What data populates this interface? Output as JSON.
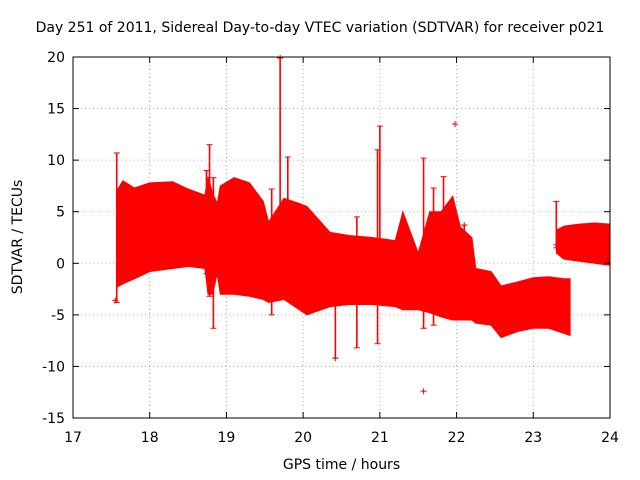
{
  "chart_data": {
    "type": "scatter",
    "title": "Day 251 of 2011, Sidereal Day-to-day VTEC variation (SDTVAR) for receiver p021",
    "xlabel": "GPS time / hours",
    "ylabel": "SDTVAR / TECUs",
    "xlim": [
      17,
      24
    ],
    "ylim": [
      -15,
      20
    ],
    "xticks": [
      17,
      18,
      19,
      20,
      21,
      22,
      23,
      24
    ],
    "yticks": [
      -15,
      -10,
      -5,
      0,
      5,
      10,
      15,
      20
    ],
    "grid": true,
    "marker": "+",
    "series_color": "#ff0000",
    "envelope": [
      {
        "x": 17.57,
        "top": 7.0,
        "bottom": -2.3
      },
      {
        "x": 17.65,
        "top": 8.0,
        "bottom": -2.0
      },
      {
        "x": 17.8,
        "top": 7.3,
        "bottom": -1.5
      },
      {
        "x": 18.0,
        "top": 7.8,
        "bottom": -0.8
      },
      {
        "x": 18.3,
        "top": 7.9,
        "bottom": -0.5
      },
      {
        "x": 18.5,
        "top": 7.2,
        "bottom": -0.3
      },
      {
        "x": 18.72,
        "top": 6.6,
        "bottom": -0.5
      },
      {
        "x": 18.76,
        "top": 8.4,
        "bottom": -3.0
      },
      {
        "x": 18.82,
        "top": 6.8,
        "bottom": -3.0
      },
      {
        "x": 18.88,
        "top": 5.8,
        "bottom": -1.0
      },
      {
        "x": 18.92,
        "top": 7.5,
        "bottom": -3.0
      },
      {
        "x": 19.1,
        "top": 8.3,
        "bottom": -3.0
      },
      {
        "x": 19.3,
        "top": 7.8,
        "bottom": -3.2
      },
      {
        "x": 19.48,
        "top": 6.0,
        "bottom": -3.5
      },
      {
        "x": 19.55,
        "top": 4.0,
        "bottom": -3.8
      },
      {
        "x": 19.75,
        "top": 6.3,
        "bottom": -3.5
      },
      {
        "x": 19.95,
        "top": 5.8,
        "bottom": -4.5
      },
      {
        "x": 20.05,
        "top": 5.5,
        "bottom": -5.0
      },
      {
        "x": 20.35,
        "top": 3.0,
        "bottom": -4.2
      },
      {
        "x": 20.6,
        "top": 2.7,
        "bottom": -4.0
      },
      {
        "x": 20.9,
        "top": 2.5,
        "bottom": -4.0
      },
      {
        "x": 21.2,
        "top": 2.2,
        "bottom": -4.2
      },
      {
        "x": 21.3,
        "top": 5.0,
        "bottom": -4.5
      },
      {
        "x": 21.5,
        "top": 1.0,
        "bottom": -4.5
      },
      {
        "x": 21.65,
        "top": 5.0,
        "bottom": -4.8
      },
      {
        "x": 21.8,
        "top": 5.0,
        "bottom": -5.2
      },
      {
        "x": 21.95,
        "top": 6.5,
        "bottom": -5.5
      },
      {
        "x": 22.05,
        "top": 3.5,
        "bottom": -5.5
      },
      {
        "x": 22.2,
        "top": 2.5,
        "bottom": -5.5
      },
      {
        "x": 22.25,
        "top": -0.5,
        "bottom": -5.8
      },
      {
        "x": 22.45,
        "top": -0.8,
        "bottom": -6.0
      },
      {
        "x": 22.58,
        "top": -2.2,
        "bottom": -7.2
      },
      {
        "x": 22.8,
        "top": -1.8,
        "bottom": -6.6
      },
      {
        "x": 23.0,
        "top": -1.4,
        "bottom": -6.3
      },
      {
        "x": 23.2,
        "top": -1.3,
        "bottom": -6.3
      },
      {
        "x": 23.4,
        "top": -1.5,
        "bottom": -6.8
      },
      {
        "x": 23.48,
        "top": -1.5,
        "bottom": -7.0
      }
    ],
    "envelope2": [
      {
        "x": 23.3,
        "top": 3.2,
        "bottom": 1.0
      },
      {
        "x": 23.4,
        "top": 3.6,
        "bottom": 0.4
      },
      {
        "x": 23.6,
        "top": 3.8,
        "bottom": 0.2
      },
      {
        "x": 23.8,
        "top": 3.9,
        "bottom": 0.0
      },
      {
        "x": 24.0,
        "top": 3.8,
        "bottom": -0.2
      }
    ],
    "spikes": [
      {
        "x": 17.57,
        "low": -3.8,
        "high": 10.7
      },
      {
        "x": 18.74,
        "low": -1.0,
        "high": 9.0
      },
      {
        "x": 18.78,
        "low": -3.2,
        "high": 11.5
      },
      {
        "x": 18.83,
        "low": -6.3,
        "high": 8.3
      },
      {
        "x": 19.59,
        "low": -5.0,
        "high": 7.2
      },
      {
        "x": 19.7,
        "low": 0.0,
        "high": 19.9
      },
      {
        "x": 19.8,
        "low": -3.0,
        "high": 10.3
      },
      {
        "x": 20.42,
        "low": -9.2,
        "high": 1.0
      },
      {
        "x": 20.7,
        "low": -8.2,
        "high": 4.5
      },
      {
        "x": 20.97,
        "low": -7.8,
        "high": 11.0
      },
      {
        "x": 21.0,
        "low": -3.0,
        "high": 13.3
      },
      {
        "x": 21.57,
        "low": -6.3,
        "high": 10.2
      },
      {
        "x": 21.7,
        "low": -6.0,
        "high": 7.3
      },
      {
        "x": 21.83,
        "low": -2.0,
        "high": 8.4
      },
      {
        "x": 22.1,
        "low": -3.0,
        "high": 3.7
      },
      {
        "x": 23.3,
        "low": 1.5,
        "high": 6.0
      }
    ],
    "outliers": [
      {
        "x": 19.7,
        "y": 19.9
      },
      {
        "x": 21.98,
        "y": 13.5
      },
      {
        "x": 21.57,
        "y": -12.4
      },
      {
        "x": 20.42,
        "y": -9.2
      },
      {
        "x": 17.55,
        "y": -3.6
      },
      {
        "x": 22.1,
        "y": 3.7
      },
      {
        "x": 23.3,
        "y": 1.8
      }
    ]
  }
}
